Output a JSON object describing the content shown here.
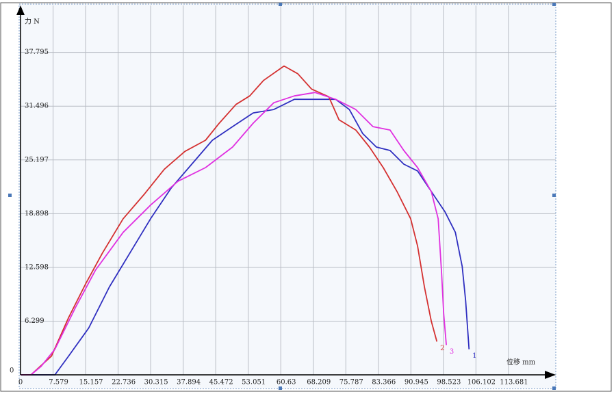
{
  "chart_data": {
    "type": "line",
    "x_label": "位移 mm",
    "y_label": "力 N",
    "xlim": [
      0,
      124.7
    ],
    "ylim": [
      0,
      43.3
    ],
    "xticks": [
      0,
      7.579,
      15.157,
      22.736,
      30.315,
      37.894,
      45.472,
      53.051,
      60.63,
      68.209,
      75.787,
      83.366,
      90.945,
      98.523,
      106.102,
      113.681
    ],
    "yticks": [
      0,
      6.299,
      12.598,
      18.898,
      25.197,
      31.496,
      37.795
    ],
    "grid": true,
    "series": [
      {
        "name": "1",
        "color": "#2f2fc0",
        "x": [
          0,
          8.0,
          11.2,
          15.9,
          20.7,
          25.5,
          30.3,
          35.1,
          39.9,
          44.7,
          49.4,
          54.2,
          59.0,
          63.8,
          68.6,
          73.4,
          76.6,
          79.7,
          82.9,
          86.1,
          89.3,
          92.5,
          95.7,
          98.9,
          101.3,
          102.9,
          103.7,
          104.5
        ],
        "values": [
          0,
          0,
          2.2,
          5.5,
          10.3,
          14.3,
          18.3,
          21.9,
          24.7,
          27.5,
          29.1,
          30.7,
          31.1,
          32.3,
          32.3,
          32.3,
          31.1,
          28.3,
          26.7,
          26.3,
          24.7,
          23.9,
          21.5,
          19.1,
          16.7,
          12.7,
          8.7,
          3.0
        ]
      },
      {
        "name": "2",
        "color": "#d43030",
        "x": [
          0,
          2.4,
          7.2,
          11.2,
          15.2,
          19.1,
          23.9,
          28.7,
          33.5,
          38.3,
          43.1,
          46.3,
          50.2,
          53.4,
          56.6,
          61.4,
          64.6,
          67.8,
          71.8,
          74.2,
          78.1,
          81.3,
          84.5,
          87.7,
          90.9,
          92.5,
          94.1,
          95.7,
          97.0
        ],
        "values": [
          0,
          0,
          2.2,
          6.7,
          10.7,
          14.3,
          18.3,
          21.1,
          24.1,
          26.2,
          27.5,
          29.5,
          31.7,
          32.7,
          34.5,
          36.2,
          35.3,
          33.5,
          32.6,
          29.9,
          28.7,
          26.7,
          24.3,
          21.5,
          18.3,
          15.1,
          10.3,
          6.3,
          3.9
        ]
      },
      {
        "name": "3",
        "color": "#e030e0",
        "x": [
          0,
          2.4,
          4.8,
          8.0,
          12.8,
          17.5,
          23.9,
          30.3,
          36.7,
          43.1,
          49.4,
          54.2,
          59.0,
          63.8,
          68.6,
          73.4,
          78.1,
          82.1,
          86.1,
          89.3,
          92.5,
          95.7,
          97.3,
          98.1,
          98.6,
          99.2
        ],
        "values": [
          0,
          0,
          1.0,
          3.0,
          7.9,
          12.3,
          16.7,
          19.9,
          22.7,
          24.3,
          26.7,
          29.5,
          31.9,
          32.7,
          33.1,
          32.3,
          31.1,
          29.1,
          28.7,
          26.3,
          24.3,
          21.5,
          18.3,
          11.9,
          7.1,
          3.5
        ]
      }
    ]
  }
}
